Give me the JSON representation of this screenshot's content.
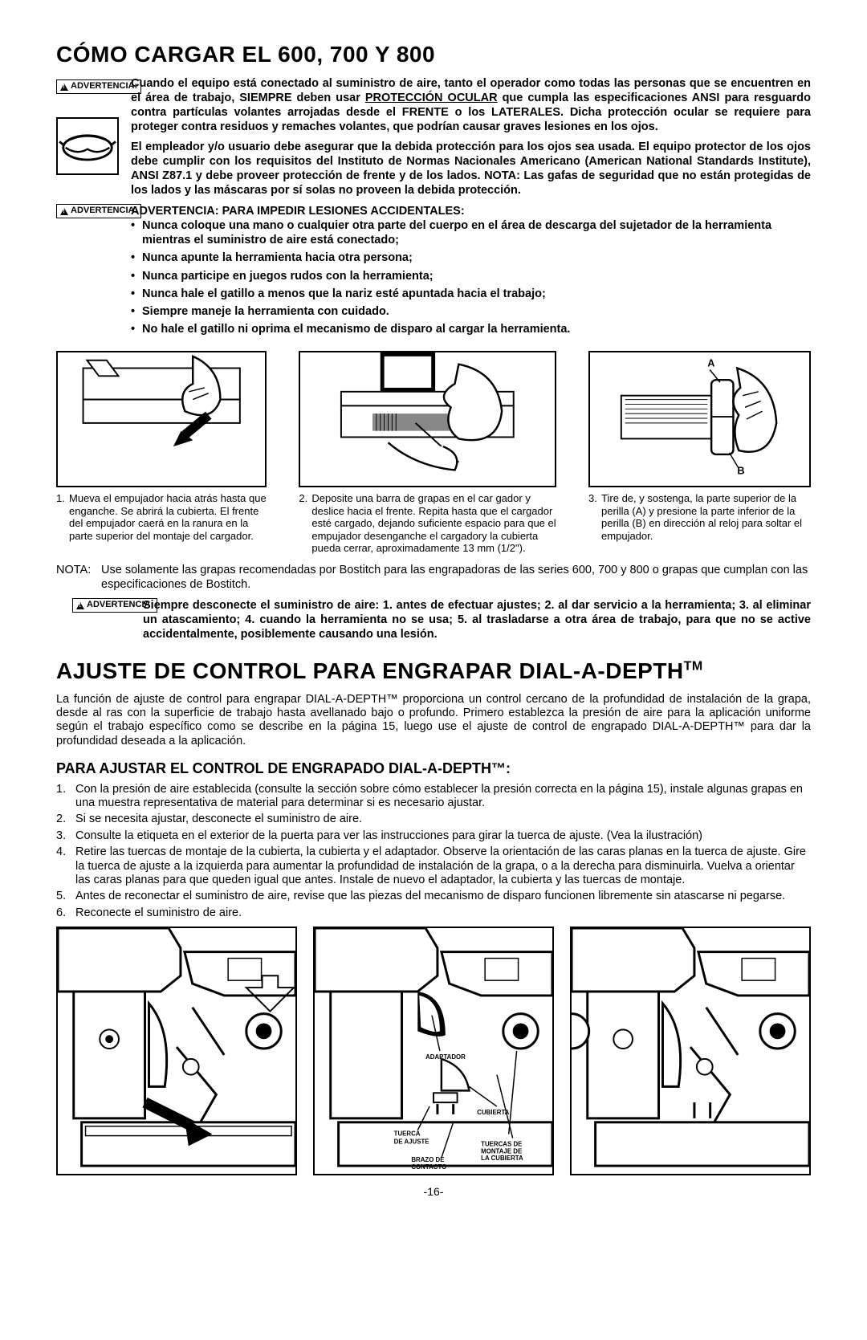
{
  "page_number": "-16-",
  "heading1": "CÓMO CARGAR EL 600, 700 Y 800",
  "warn_label": "ADVERTENCIA:",
  "warn1_text_a": "Cuando el equipo está conectado al suministro de aire, tanto el operador como todas las personas que se encuentren en el área de trabajo, SIEMPRE deben usar ",
  "warn1_text_und": "PROTECCIÓN OCULAR",
  "warn1_text_b": " que cumpla las especificaciones ANSI para resguardo contra partículas volantes arrojadas desde el FRENTE o los LATERALES. Dicha protección ocular se requiere para proteger contra residuos y remaches volantes, que podrían causar graves lesiones en los ojos.",
  "warn1_text_2": "El empleador y/o usuario debe asegurar que la debida protección para los ojos sea usada. El equipo protector de los ojos debe cumplir con los requisitos del Instituto de Normas Nacionales Americano (American National Standards Institute), ANSI Z87.1 y debe proveer protección de frente y de los lados. NOTA: Las gafas de seguridad que no están protegidas de los lados y las máscaras por sí solas no proveen la debida protección.",
  "warn2_title": "ADVERTENCIA: PARA IMPEDIR LESIONES ACCIDENTALES:",
  "warn2_items": [
    "Nunca coloque una mano o cualquier otra parte del cuerpo en el área de descarga del sujetador de la herramienta mientras el suministro de aire está conectado;",
    "Nunca apunte la herramienta hacia otra persona;",
    "Nunca participe en juegos rudos con la herramienta;",
    "Nunca hale el gatillo a menos que la nariz esté apuntada hacia el trabajo;",
    "Siempre maneje la herramienta con cuidado.",
    "No hale el gatillo ni oprima el mecanismo de disparo al cargar la herramienta."
  ],
  "fig_captions": [
    "Mueva el empujador hacia atrás hasta que enganche. Se abrirá la cubierta. El frente del empujador caerá en la ranura en la parte superior del montaje del cargador.",
    "Deposite una barra de grapas en el car gador y deslice hacia el frente. Repita hasta que el cargador esté cargado, dejando suficiente espacio para que el empujador desenganche el cargadory la cubierta pueda cerrar, aproximadamente 13 mm (1/2\").",
    "Tire de, y sostenga, la parte superior de la perilla (A) y presione la parte inferior de la perilla (B) en dirección al reloj para soltar el empujador."
  ],
  "nota_label": "NOTA:",
  "nota_text": "Use solamente las grapas recomendadas por Bostitch para las engrapadoras de las series 600, 700 y 800 o grapas que cumplan con las especificaciones de Bostitch.",
  "warn3_text": "Siempre desconecte el suministro de aire: 1. antes de efectuar ajustes; 2. al dar servicio a la herramienta; 3. al eliminar un atascamiento; 4. cuando la herramienta no se usa; 5. al trasladarse a otra área de trabajo, para que no se active accidentalmente, posiblemente causando una lesión.",
  "heading2_a": "AJUSTE DE CONTROL PARA ENGRAPAR DIAL-A-DEPTH",
  "heading2_tm": "TM",
  "intro_text": "La función de ajuste de control para engrapar DIAL-A-DEPTH™ proporciona un control cercano de la profundidad de instalación de la grapa, desde al ras con la superficie de trabajo hasta avellanado bajo o profundo. Primero establezca la presión de aire para la aplicación uniforme según el trabajo específico como se describe en la página 15, luego use el ajuste de control de engrapado DIAL-A-DEPTH™ para dar la profundidad deseada a la aplicación.",
  "sub_heading": "PARA AJUSTAR EL CONTROL DE ENGRAPADO DIAL-A-DEPTH™:",
  "steps": [
    "Con la presión de aire establecida (consulte la sección sobre cómo establecer la presión correcta en la página 15), instale algunas grapas en una muestra representativa de material para determinar si es necesario ajustar.",
    "Si se necesita ajustar, desconecte el suministro de aire.",
    "Consulte la etiqueta en el exterior de la puerta para ver las instrucciones para girar la tuerca de ajuste. (Vea la ilustración)",
    "Retire las tuercas de montaje de la cubierta, la cubierta y el adaptador. Observe la orientación de las caras planas en la tuerca de ajuste. Gire la tuerca de ajuste a la izquierda para aumentar la profundidad de instalación de la grapa, o a la derecha para disminuirla. Vuelva a orientar las caras planas para que queden igual que antes. Instale de nuevo el adaptador, la cubierta y las tuercas de montaje.",
    "Antes de reconectar el suministro de aire, revise que las piezas del mecanismo de disparo funcionen libremente sin atascarse ni pegarse.",
    "Reconecte el suministro de aire."
  ],
  "bottom_labels": {
    "adaptador": "ADAPTADOR",
    "cubierta": "CUBIERTA",
    "tuerca": "TUERCA\nDE AJUSTE",
    "brazo": "BRAZO DE\nCONTACTO",
    "tuercas_mont": "TUERCAS DE\nMONTAJE DE\nLA CUBIERTA"
  },
  "fig3_labels": {
    "a": "A",
    "b": "B"
  }
}
